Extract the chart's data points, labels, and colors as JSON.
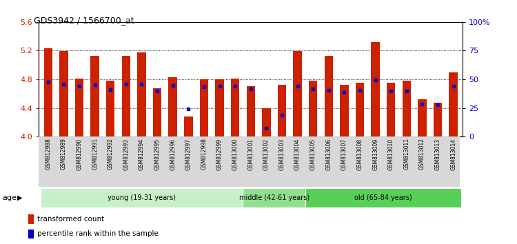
{
  "title": "GDS3942 / 1566700_at",
  "samples": [
    "GSM812988",
    "GSM812989",
    "GSM812990",
    "GSM812991",
    "GSM812992",
    "GSM812993",
    "GSM812994",
    "GSM812995",
    "GSM812996",
    "GSM812997",
    "GSM812998",
    "GSM812999",
    "GSM813000",
    "GSM813001",
    "GSM813002",
    "GSM813003",
    "GSM813004",
    "GSM813005",
    "GSM813006",
    "GSM813007",
    "GSM813008",
    "GSM813009",
    "GSM813010",
    "GSM813011",
    "GSM813012",
    "GSM813013",
    "GSM813014"
  ],
  "red_values": [
    5.23,
    5.19,
    4.81,
    5.13,
    4.78,
    5.13,
    5.18,
    4.68,
    4.83,
    4.28,
    4.8,
    4.8,
    4.81,
    4.7,
    4.4,
    4.72,
    5.19,
    4.78,
    5.13,
    4.72,
    4.75,
    5.32,
    4.75,
    4.78,
    4.52,
    4.47,
    4.9
  ],
  "blue_values": [
    4.76,
    4.73,
    4.7,
    4.72,
    4.66,
    4.73,
    4.73,
    4.64,
    4.71,
    4.39,
    4.69,
    4.7,
    4.7,
    4.67,
    4.12,
    4.3,
    4.7,
    4.67,
    4.65,
    4.62,
    4.65,
    4.79,
    4.64,
    4.64,
    4.45,
    4.44,
    4.7
  ],
  "ylim": [
    4.0,
    5.6
  ],
  "yticks": [
    4.0,
    4.4,
    4.8,
    5.2,
    5.6
  ],
  "right_yticks": [
    0,
    25,
    50,
    75,
    100
  ],
  "right_ytick_labels": [
    "0",
    "25",
    "50",
    "75",
    "100%"
  ],
  "groups": [
    {
      "label": "young (19-31 years)",
      "start": 0,
      "end": 13,
      "color": "#c8f0c8"
    },
    {
      "label": "middle (42-61 years)",
      "start": 13,
      "end": 17,
      "color": "#90e090"
    },
    {
      "label": "old (65-84 years)",
      "start": 17,
      "end": 27,
      "color": "#58d058"
    }
  ],
  "bar_color": "#cc2200",
  "marker_color": "#0000cc",
  "bar_width": 0.55,
  "age_label": "age",
  "legend_red": "transformed count",
  "legend_blue": "percentile rank within the sample"
}
